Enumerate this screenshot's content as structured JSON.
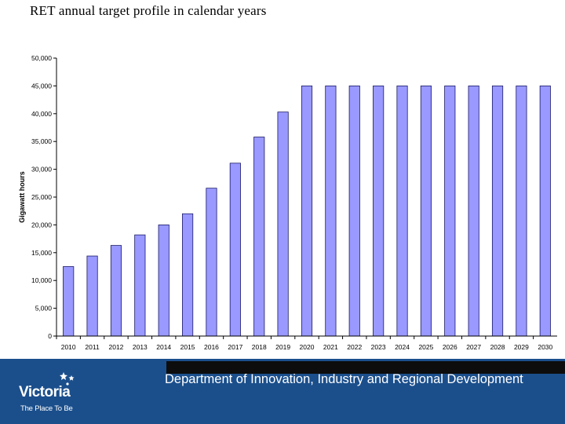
{
  "slide": {
    "title": "RET annual target profile in calendar years"
  },
  "footer": {
    "department": "Department of Innovation, Industry and Regional Development",
    "logo_word": "Victoria",
    "logo_tagline": "The Place To Be",
    "background_color": "#1b4f8c"
  },
  "chart_data": {
    "type": "bar",
    "title": "",
    "xlabel": "",
    "ylabel": "Gigawatt hours",
    "ylim": [
      0,
      50000
    ],
    "yticks": [
      "0",
      "5,000",
      "10,000",
      "15,000",
      "20,000",
      "25,000",
      "30,000",
      "35,000",
      "40,000",
      "45,000",
      "50,000"
    ],
    "grid": false,
    "legend": "none",
    "bar_color": "#9999ff",
    "categories": [
      "2010",
      "2011",
      "2012",
      "2013",
      "2014",
      "2015",
      "2016",
      "2017",
      "2018",
      "2019",
      "2020",
      "2021",
      "2022",
      "2023",
      "2024",
      "2025",
      "2026",
      "2027",
      "2028",
      "2029",
      "2030"
    ],
    "values": [
      12500,
      14400,
      16300,
      18200,
      20000,
      22000,
      26600,
      31100,
      35800,
      40300,
      45000,
      45000,
      45000,
      45000,
      45000,
      45000,
      45000,
      45000,
      45000,
      45000,
      45000
    ]
  }
}
